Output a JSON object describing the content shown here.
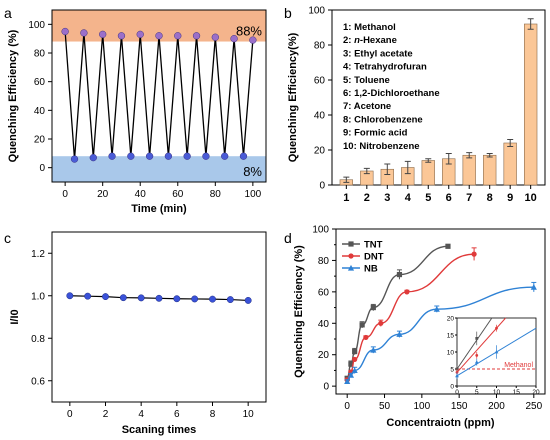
{
  "panels": {
    "a": "a",
    "b": "b",
    "c": "c",
    "d": "d"
  },
  "chart_data": [
    {
      "id": "a",
      "type": "line",
      "xlabel": "Time (min)",
      "ylabel": "Quenching Efficiency (%)",
      "xlim": [
        -7,
        107
      ],
      "ylim": [
        -10,
        110
      ],
      "xticks": [
        0,
        20,
        40,
        60,
        80,
        100
      ],
      "yticks": [
        0,
        20,
        40,
        60,
        80,
        100
      ],
      "annotations": {
        "high": "88%",
        "low": "8%"
      },
      "bands": [
        {
          "from": 88,
          "to": 110,
          "color": "#f4b48c"
        },
        {
          "from": -10,
          "to": 8,
          "color": "#a9c8ea"
        }
      ],
      "x": [
        0,
        5,
        10,
        15,
        20,
        25,
        30,
        35,
        40,
        45,
        50,
        55,
        60,
        65,
        70,
        75,
        80,
        85,
        90,
        95,
        100
      ],
      "y": [
        95,
        6,
        94,
        7,
        93,
        8,
        92,
        8,
        93,
        8,
        92,
        8,
        92,
        8,
        92,
        8,
        91,
        8,
        90,
        8,
        89
      ]
    },
    {
      "id": "b",
      "type": "bar",
      "xlabel": "",
      "ylabel": "Quenching Efficiency(%)",
      "ylim": [
        0,
        100
      ],
      "yticks": [
        0,
        20,
        40,
        60,
        80,
        100
      ],
      "categories": [
        "1",
        "2",
        "3",
        "4",
        "5",
        "6",
        "7",
        "8",
        "9",
        "10"
      ],
      "values": [
        3,
        8,
        9,
        10,
        14,
        15,
        17,
        17,
        24,
        92
      ],
      "errors": [
        1.5,
        1.5,
        3,
        3.5,
        1,
        3,
        1.5,
        1,
        2,
        3
      ],
      "bar_color": "#fbc797",
      "legend": [
        {
          "num": "1: ",
          "name": "Methanol"
        },
        {
          "num": "2: ",
          "name": "n-Hexane"
        },
        {
          "num": "3: ",
          "name": "Ethyl acetate"
        },
        {
          "num": "4: ",
          "name": "Tetrahydrofuran"
        },
        {
          "num": "5: ",
          "name": "Toluene"
        },
        {
          "num": "6: ",
          "name": "1,2-Dichloroethane"
        },
        {
          "num": "7: ",
          "name": "Acetone"
        },
        {
          "num": "8: ",
          "name": "Chlorobenzene"
        },
        {
          "num": "9: ",
          "name": "Formic acid"
        },
        {
          "num": "10: ",
          "name": "Nitrobenzene"
        }
      ]
    },
    {
      "id": "c",
      "type": "line",
      "xlabel": "Scaning times",
      "ylabel": "I/I0",
      "xlim": [
        -1,
        11
      ],
      "ylim": [
        0.5,
        1.3
      ],
      "xticks": [
        0,
        2,
        4,
        6,
        8,
        10
      ],
      "yticks": [
        0.6,
        0.8,
        1.0,
        1.2
      ],
      "ytick_labels": [
        "0.6",
        "0.8",
        "1.0",
        "1.2"
      ],
      "x": [
        0,
        1,
        2,
        3,
        4,
        5,
        6,
        7,
        8,
        9,
        10
      ],
      "y": [
        1.0,
        0.998,
        0.996,
        0.991,
        0.99,
        0.988,
        0.986,
        0.985,
        0.984,
        0.982,
        0.978
      ]
    },
    {
      "id": "d",
      "type": "line",
      "xlabel": "Concentraiotn (ppm)",
      "ylabel": "Quenching Efficiency (%)",
      "xlim": [
        -15,
        265
      ],
      "ylim": [
        -5,
        100
      ],
      "xticks": [
        0,
        50,
        100,
        150,
        200,
        250
      ],
      "yticks": [
        0,
        10,
        20,
        30,
        40,
        50,
        60,
        70,
        80,
        90,
        100
      ],
      "series": [
        {
          "name": "TNT",
          "color": "#555555",
          "marker": "square",
          "x": [
            0,
            5,
            10,
            20,
            35,
            70,
            135
          ],
          "y": [
            5,
            14,
            22,
            39,
            50,
            71,
            89
          ],
          "err": [
            1,
            2,
            2,
            2,
            2,
            3,
            1
          ]
        },
        {
          "name": "DNT",
          "color": "#e03a3a",
          "marker": "circle",
          "x": [
            0,
            5,
            10,
            25,
            45,
            80,
            170
          ],
          "y": [
            4,
            9,
            17,
            31,
            40,
            60,
            84
          ],
          "err": [
            1,
            1,
            1,
            1,
            2,
            1,
            4
          ]
        },
        {
          "name": "NB",
          "color": "#2f82d5",
          "marker": "triangle",
          "x": [
            0,
            5,
            10,
            35,
            70,
            120,
            250
          ],
          "y": [
            3,
            7,
            10,
            23,
            33,
            49,
            63
          ],
          "err": [
            1,
            1,
            2,
            2,
            2,
            2,
            3
          ]
        }
      ],
      "inset": {
        "xlim": [
          0,
          20
        ],
        "ylim": [
          0,
          20
        ],
        "xticks": [
          0,
          5,
          10,
          15,
          20
        ],
        "yticks": [
          0,
          5,
          10,
          15,
          20
        ],
        "reference": {
          "label": "Methanol",
          "y": 5,
          "color": "#e03a3a"
        }
      }
    }
  ]
}
